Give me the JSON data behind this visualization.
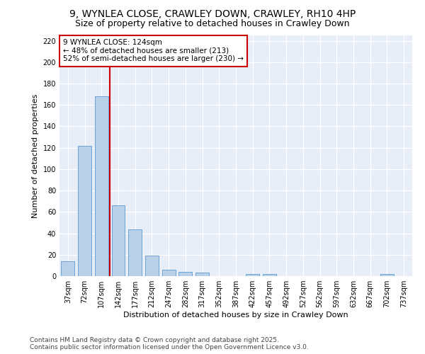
{
  "title_line1": "9, WYNLEA CLOSE, CRAWLEY DOWN, CRAWLEY, RH10 4HP",
  "title_line2": "Size of property relative to detached houses in Crawley Down",
  "xlabel": "Distribution of detached houses by size in Crawley Down",
  "ylabel": "Number of detached properties",
  "footer_line1": "Contains HM Land Registry data © Crown copyright and database right 2025.",
  "footer_line2": "Contains public sector information licensed under the Open Government Licence v3.0.",
  "categories": [
    "37sqm",
    "72sqm",
    "107sqm",
    "142sqm",
    "177sqm",
    "212sqm",
    "247sqm",
    "282sqm",
    "317sqm",
    "352sqm",
    "387sqm",
    "422sqm",
    "457sqm",
    "492sqm",
    "527sqm",
    "562sqm",
    "597sqm",
    "632sqm",
    "667sqm",
    "702sqm",
    "737sqm"
  ],
  "values": [
    14,
    122,
    168,
    66,
    44,
    19,
    6,
    4,
    3,
    0,
    0,
    2,
    2,
    0,
    0,
    0,
    0,
    0,
    0,
    2,
    0
  ],
  "bar_color": "#b8d0e8",
  "bar_edge_color": "#5b9bd5",
  "background_color": "#e8eef8",
  "grid_color": "#ffffff",
  "annotation_text": "9 WYNLEA CLOSE: 124sqm\n← 48% of detached houses are smaller (213)\n52% of semi-detached houses are larger (230) →",
  "annotation_box_color": "#ffffff",
  "annotation_box_edge_color": "#cc0000",
  "vline_x": 2.5,
  "vline_color": "#cc0000",
  "ylim": [
    0,
    225
  ],
  "yticks": [
    0,
    20,
    40,
    60,
    80,
    100,
    120,
    140,
    160,
    180,
    200,
    220
  ],
  "title1_fontsize": 10,
  "title2_fontsize": 9,
  "axis_label_fontsize": 8,
  "tick_fontsize": 7,
  "annotation_fontsize": 7.5,
  "footer_fontsize": 6.5
}
